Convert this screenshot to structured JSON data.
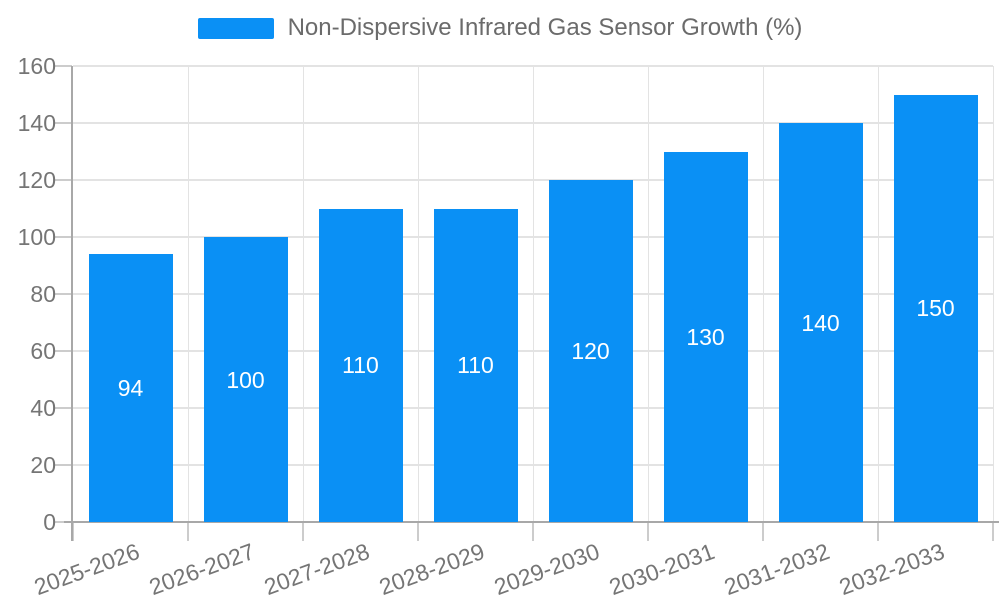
{
  "chart_data": {
    "type": "bar",
    "title": "Non-Dispersive Infrared Gas Sensor Growth (%)",
    "legend": [
      "Non-Dispersive Infrared Gas Sensor Growth (%)"
    ],
    "legend_position": "top-center",
    "categories": [
      "2025-2026",
      "2026-2027",
      "2027-2028",
      "2028-2029",
      "2029-2030",
      "2030-2031",
      "2031-2032",
      "2032-2033"
    ],
    "values": [
      94,
      100,
      110,
      110,
      120,
      130,
      140,
      150
    ],
    "xlabel": "",
    "ylabel": "",
    "ylim": [
      0,
      160
    ],
    "yticks": [
      0,
      20,
      40,
      60,
      80,
      100,
      120,
      140,
      160
    ],
    "grid": true,
    "bar_value_labels_inside": true,
    "x_label_rotation_deg": -20,
    "colors": {
      "bar": "#0a90f5",
      "bar_label": "#ffffff",
      "axis_text": "#757575",
      "title_text": "#6b6b6b",
      "gridline": "#e3e3e3",
      "axis_line": "#a8a8a8",
      "tick": "#cccccc",
      "background": "#ffffff"
    }
  }
}
